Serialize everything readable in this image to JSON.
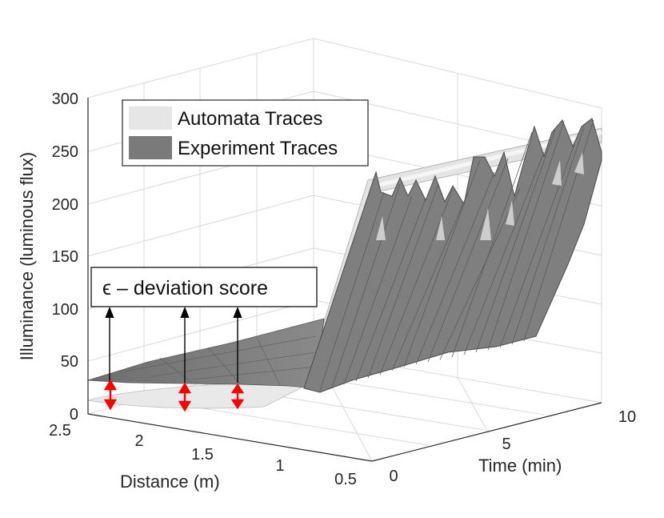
{
  "chart_data": {
    "type": "surface3d",
    "title": "",
    "xlabel": "Distance (m)",
    "ylabel": "Time (min)",
    "zlabel": "Illuminance (luminous flux)",
    "xlim": [
      0.5,
      2.5
    ],
    "ylim": [
      0,
      10
    ],
    "zlim": [
      0,
      300
    ],
    "x_ticks": [
      "2.5",
      "2",
      "1.5",
      "1",
      "0.5"
    ],
    "y_ticks": [
      "0",
      "5",
      "10"
    ],
    "z_ticks": [
      "0",
      "50",
      "100",
      "150",
      "200",
      "250",
      "300"
    ],
    "grid": true,
    "legend_position": "top-left",
    "series": [
      {
        "name": "Automata Traces",
        "color": "#e6e6e6",
        "shape": "smooth ramp rising from about 10 to about 270 lux as distance decreases from 2.5 m to 0.5 m, constant over time"
      },
      {
        "name": "Experiment Traces",
        "color": "#7a7a7a",
        "shape": "noisy surface: about 30 lux at 2.5 m rising to about 240-290 lux with sharp spikes near 0.5 m"
      }
    ],
    "annotations": {
      "score_label": "ϵ  – deviation score",
      "deviation_arrow_count": 3
    }
  }
}
